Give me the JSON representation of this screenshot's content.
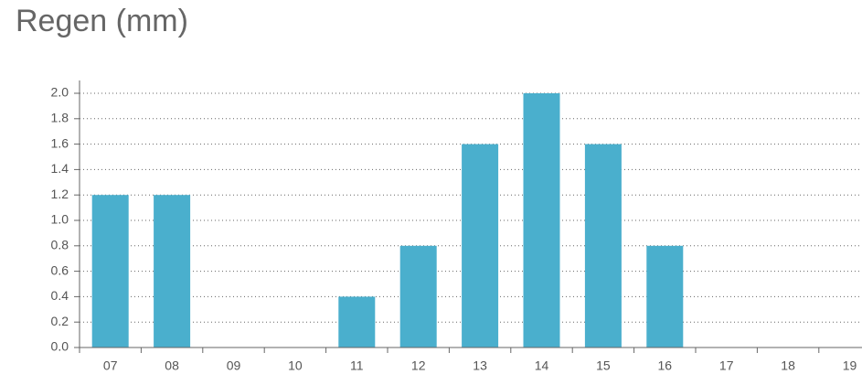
{
  "chart_data": {
    "type": "bar",
    "title": "Regen (mm)",
    "categories": [
      "07",
      "08",
      "09",
      "10",
      "11",
      "12",
      "13",
      "14",
      "15",
      "16",
      "17",
      "18",
      "19"
    ],
    "values": [
      1.2,
      1.2,
      0,
      0,
      0.4,
      0.8,
      1.6,
      2.0,
      1.6,
      0.8,
      0,
      0,
      0
    ],
    "color": "#4aafcd",
    "ylim": [
      0,
      2.0
    ],
    "yticks": [
      {
        "value": 0,
        "label": "0.0"
      },
      0.2,
      0.4,
      0.6,
      0.8,
      {
        "value": 1,
        "label": "1.0"
      },
      1.2,
      1.4,
      1.6,
      1.8,
      {
        "value": 2,
        "label": "2.0"
      }
    ],
    "grid": true
  }
}
